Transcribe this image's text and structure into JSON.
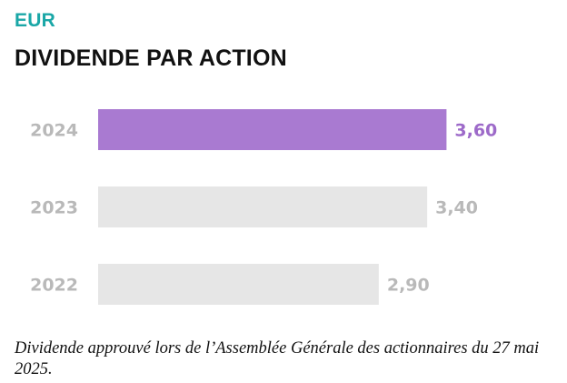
{
  "header": {
    "currency": "EUR",
    "title": "DIVIDENDE PAR ACTION"
  },
  "chart_data": {
    "type": "bar",
    "orientation": "horizontal",
    "categories": [
      "2024",
      "2023",
      "2022"
    ],
    "values": [
      3.6,
      3.4,
      2.9
    ],
    "value_labels": [
      "3,60",
      "3,40",
      "2,90"
    ],
    "xlim": [
      0,
      3.9
    ],
    "grid": false,
    "highlight_index": 0,
    "colors": {
      "highlight_bar": "#a97ad1",
      "highlight_text": "#9d6ac9",
      "bar": "#e6e6e6",
      "text": "#b9b9b9"
    }
  },
  "footnote": "Dividende approuvé lors de l’Assemblée Générale des actionnaires du 27 mai 2025."
}
